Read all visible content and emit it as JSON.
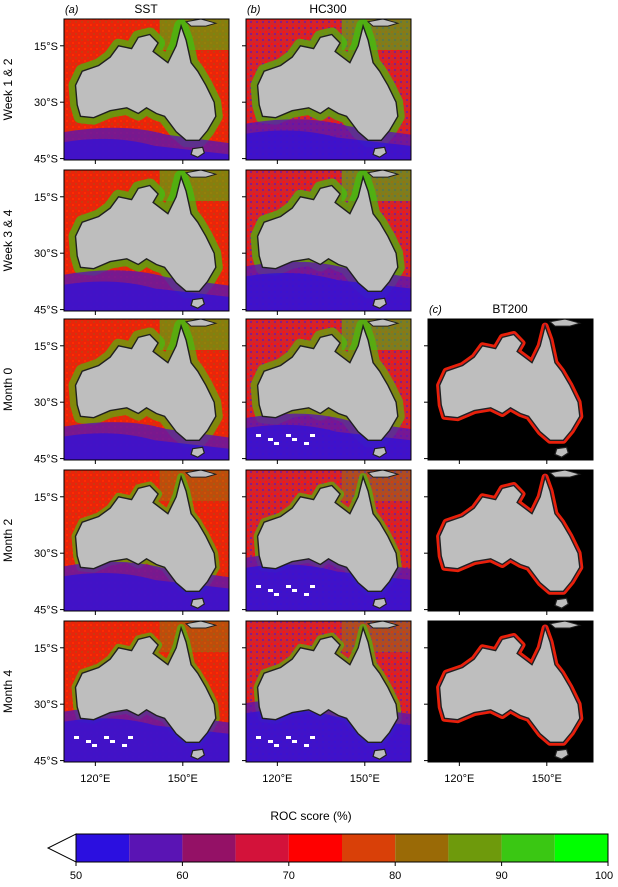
{
  "panels": [
    {
      "label": "(a)",
      "title": "SST"
    },
    {
      "label": "(b)",
      "title": "HC300"
    },
    {
      "label": "(c)",
      "title": "BT200"
    }
  ],
  "rows": [
    "Week 1 & 2",
    "Week 3 & 4",
    "Month 0",
    "Month 2",
    "Month 4"
  ],
  "lat_ticks": [
    "15°S",
    "30°S",
    "45°S"
  ],
  "lon_ticks": [
    "120°E",
    "150°E"
  ],
  "colorbar": {
    "title": "ROC score (%)",
    "min": 50,
    "max": 100,
    "step": 5,
    "tick_labels": [
      "50",
      "60",
      "70",
      "80",
      "90",
      "100"
    ],
    "colors": [
      "#2b0fe0",
      "#5a14b4",
      "#941166",
      "#d3123a",
      "#ff0000",
      "#d94008",
      "#9a6a06",
      "#6e9a0c",
      "#3ac713",
      "#00ff00"
    ],
    "below_color": "#ffffff"
  },
  "map_style": {
    "land": "#bebebe",
    "no_data": "#000000",
    "coast": "#202020"
  },
  "grid_data": [
    {
      "row": "Week 1 & 2",
      "product": "SST",
      "ocean_level": "red-orange, green near coast"
    },
    {
      "row": "Week 1 & 2",
      "product": "HC300",
      "ocean_level": "green and red, purple south"
    },
    {
      "row": "Week 3 & 4",
      "product": "SST",
      "ocean_level": "red, purple south-west"
    },
    {
      "row": "Week 3 & 4",
      "product": "HC300",
      "ocean_level": "red, purple south"
    },
    {
      "row": "Month 0",
      "product": "SST",
      "ocean_level": "red, green north"
    },
    {
      "row": "Month 0",
      "product": "HC300",
      "ocean_level": "red-green, purple/white south"
    },
    {
      "row": "Month 0",
      "product": "BT200",
      "ocean_level": "shelf only, orange-red"
    },
    {
      "row": "Month 2",
      "product": "SST",
      "ocean_level": "red, purple south"
    },
    {
      "row": "Month 2",
      "product": "HC300",
      "ocean_level": "red-green, purple south"
    },
    {
      "row": "Month 2",
      "product": "BT200",
      "ocean_level": "shelf only, red"
    },
    {
      "row": "Month 4",
      "product": "SST",
      "ocean_level": "red, purple south with white"
    },
    {
      "row": "Month 4",
      "product": "HC300",
      "ocean_level": "red-green, purple south with white"
    },
    {
      "row": "Month 4",
      "product": "BT200",
      "ocean_level": "shelf only, red"
    }
  ]
}
